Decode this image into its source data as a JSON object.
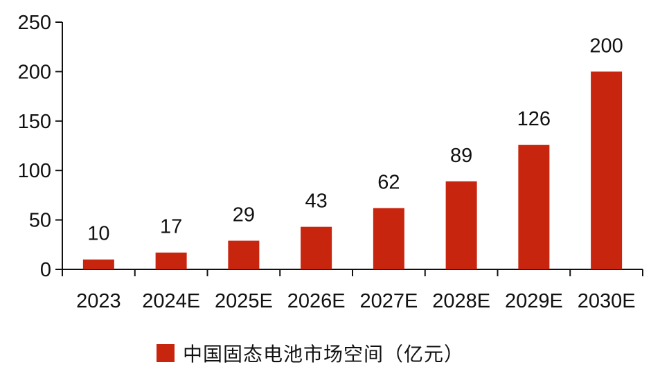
{
  "chart_data": {
    "type": "bar",
    "categories": [
      "2023",
      "2024E",
      "2025E",
      "2026E",
      "2027E",
      "2028E",
      "2029E",
      "2030E"
    ],
    "series": [
      {
        "name": "中国固态电池市场空间（亿元）",
        "values": [
          10,
          17,
          29,
          43,
          62,
          89,
          126,
          200
        ],
        "color": "#C8250F"
      }
    ],
    "data_labels": [
      "10",
      "17",
      "29",
      "43",
      "62",
      "89",
      "126",
      "200"
    ],
    "ylim": [
      0,
      250
    ],
    "yticks": [
      0,
      50,
      100,
      150,
      200,
      250
    ],
    "ytick_labels": [
      "0",
      "50",
      "100",
      "150",
      "200",
      "250"
    ],
    "grid": false,
    "legend_position": "bottom",
    "title": "",
    "xlabel": "",
    "ylabel": ""
  }
}
